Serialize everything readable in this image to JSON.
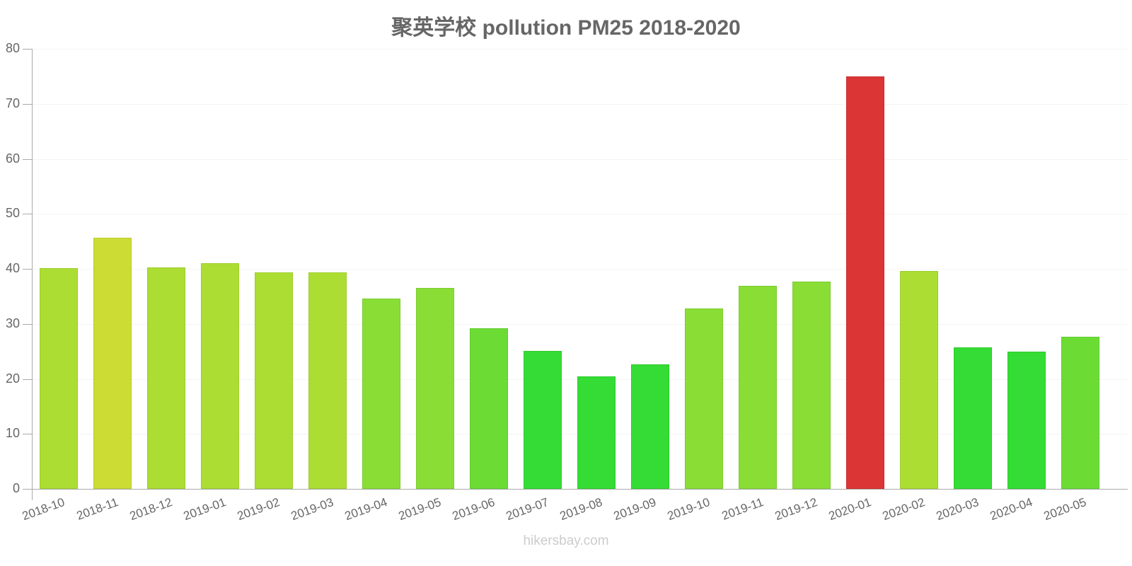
{
  "chart_data": {
    "type": "bar",
    "title": "聚英学校 pollution PM25 2018-2020",
    "xlabel": "",
    "ylabel": "",
    "ylim": [
      0,
      80
    ],
    "yticks": [
      0,
      10,
      20,
      30,
      40,
      50,
      60,
      70,
      80
    ],
    "grid": true,
    "legend": null,
    "categories": [
      "2018-10",
      "2018-11",
      "2018-12",
      "2019-01",
      "2019-02",
      "2019-03",
      "2019-04",
      "2019-05",
      "2019-06",
      "2019-07",
      "2019-08",
      "2019-09",
      "2019-10",
      "2019-11",
      "2019-12",
      "2020-01",
      "2020-02",
      "2020-03",
      "2020-04",
      "2020-05"
    ],
    "values": [
      40.1,
      45.6,
      40.3,
      41.0,
      39.4,
      39.3,
      34.6,
      36.5,
      29.2,
      25.1,
      20.5,
      22.7,
      32.8,
      36.9,
      37.7,
      75.0,
      39.6,
      25.7,
      24.9,
      27.6
    ],
    "colors": [
      "#acdd33",
      "#cddc35",
      "#acdd33",
      "#acdd33",
      "#acdd33",
      "#acdd33",
      "#8add35",
      "#8add35",
      "#6cdc35",
      "#35dc35",
      "#35dc35",
      "#35dc35",
      "#8add35",
      "#8add35",
      "#8add35",
      "#dc3535",
      "#acdd33",
      "#35dc35",
      "#35dc35",
      "#6cdc35"
    ],
    "border_colors": [
      "#9dcc2e",
      "#bccb30",
      "#9dcc2e",
      "#9dcc2e",
      "#9dcc2e",
      "#9dcc2e",
      "#7ccc30",
      "#7ccc30",
      "#5ecb30",
      "#2ccb2c",
      "#2ccb2c",
      "#2ccb2c",
      "#7ccc30",
      "#7ccc30",
      "#7ccc30",
      "#cb2d2d",
      "#9dcc2e",
      "#2ccb2c",
      "#2ccb2c",
      "#5ecb30"
    ]
  },
  "footer": {
    "watermark": "hikersbay.com"
  }
}
